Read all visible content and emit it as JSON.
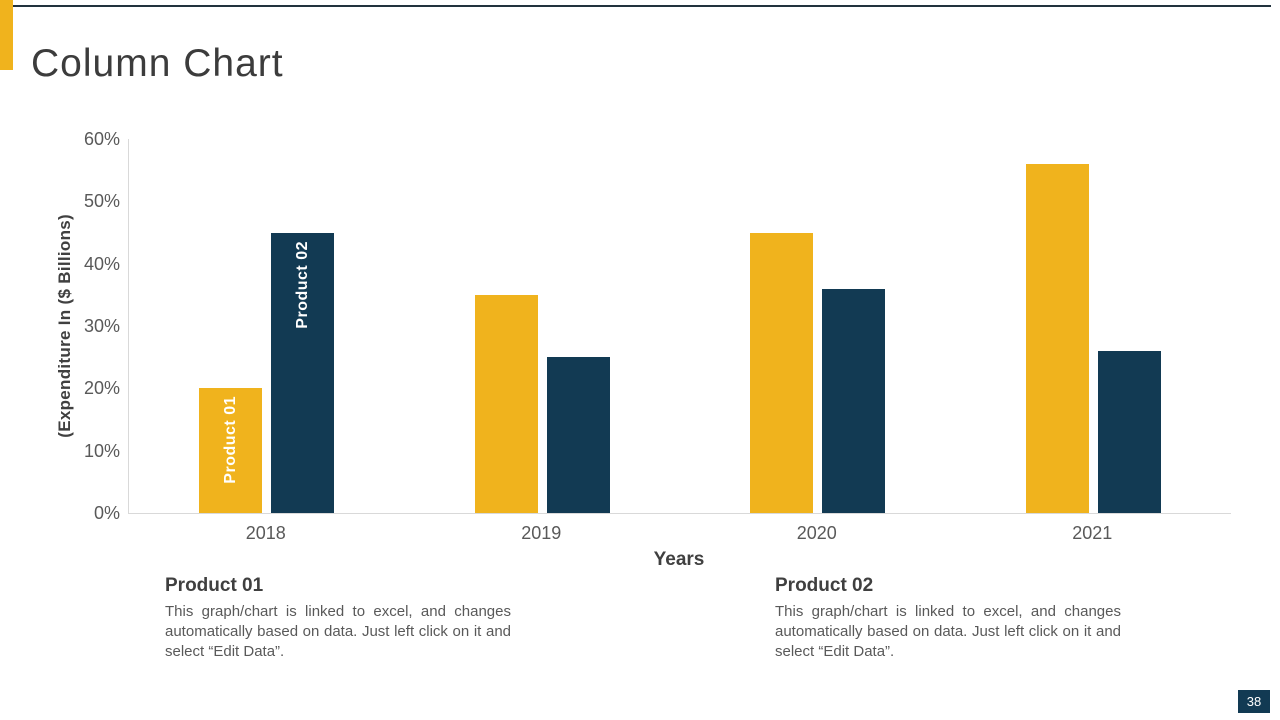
{
  "slide": {
    "title": "Column Chart",
    "page_number": "38",
    "accent_color": "#F0B31D",
    "navy_color": "#123A53"
  },
  "chart_data": {
    "type": "bar",
    "categories": [
      "2018",
      "2019",
      "2020",
      "2021"
    ],
    "series": [
      {
        "name": "Product 01",
        "color": "#F0B31D",
        "values": [
          20,
          35,
          45,
          56
        ]
      },
      {
        "name": "Product 02",
        "color": "#123A53",
        "values": [
          45,
          25,
          36,
          26
        ]
      }
    ],
    "xlabel": "Years",
    "ylabel": "(Expenditure In ($ Billions)",
    "ylim": [
      0,
      60
    ],
    "yticks": [
      "0%",
      "10%",
      "20%",
      "30%",
      "40%",
      "50%",
      "60%"
    ],
    "grid": false,
    "legend_position": "none",
    "series_labels_in_first_group": true,
    "axis_line_color": "#D9D9D9",
    "tick_color": "#595959"
  },
  "notes": [
    {
      "heading": "Product 01",
      "body": "This graph/chart is linked to excel, and changes automatically based on data. Just left click on it and select “Edit Data”."
    },
    {
      "heading": "Product 02",
      "body": "This graph/chart is linked to excel, and changes automatically based on data. Just left click on it and select “Edit Data”."
    }
  ]
}
